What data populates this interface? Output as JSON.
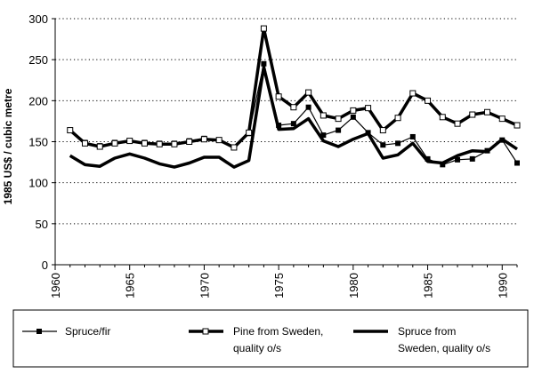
{
  "chart_data": {
    "type": "line",
    "title": "",
    "xlabel": "",
    "ylabel": "1985 US$ / cubic metre",
    "xlim": [
      1960,
      1991
    ],
    "ylim": [
      0,
      300
    ],
    "grid": "horizontal-dotted",
    "x_ticks": [
      "1960",
      "1965",
      "1970",
      "1975",
      "1980",
      "1985",
      "1990"
    ],
    "y_ticks": [
      "0",
      "50",
      "100",
      "150",
      "200",
      "250",
      "300"
    ],
    "x": [
      1961,
      1962,
      1963,
      1964,
      1965,
      1966,
      1967,
      1968,
      1969,
      1970,
      1971,
      1972,
      1973,
      1974,
      1975,
      1976,
      1977,
      1978,
      1979,
      1980,
      1981,
      1982,
      1983,
      1984,
      1985,
      1986,
      1987,
      1988,
      1989,
      1990,
      1991
    ],
    "series": [
      {
        "name": "Spruce/fir",
        "marker": "filled-square",
        "line": "thin",
        "values": [
          164,
          149,
          145,
          149,
          151,
          149,
          148,
          148,
          151,
          154,
          152,
          143,
          160,
          245,
          170,
          172,
          192,
          158,
          164,
          180,
          161,
          146,
          148,
          156,
          129,
          122,
          128,
          129,
          139,
          152,
          124
        ]
      },
      {
        "name": "Pine from Sweden, quality o/s",
        "label_lines": [
          "Pine from Sweden,",
          "quality o/s"
        ],
        "marker": "open-square",
        "line": "thick",
        "values": [
          164,
          148,
          144,
          148,
          151,
          148,
          147,
          147,
          150,
          153,
          152,
          143,
          161,
          288,
          205,
          192,
          210,
          182,
          178,
          188,
          191,
          164,
          179,
          209,
          200,
          180,
          172,
          183,
          186,
          178,
          170
        ]
      },
      {
        "name": "Spruce from Sweden, quality o/s",
        "label_lines": [
          "Spruce from",
          "Sweden, quality o/s"
        ],
        "marker": "none",
        "line": "thick",
        "values": [
          133,
          122,
          120,
          130,
          135,
          130,
          123,
          119,
          124,
          131,
          131,
          119,
          127,
          241,
          165,
          166,
          178,
          151,
          144,
          153,
          160,
          130,
          134,
          148,
          126,
          124,
          133,
          139,
          138,
          153,
          141
        ]
      }
    ]
  }
}
